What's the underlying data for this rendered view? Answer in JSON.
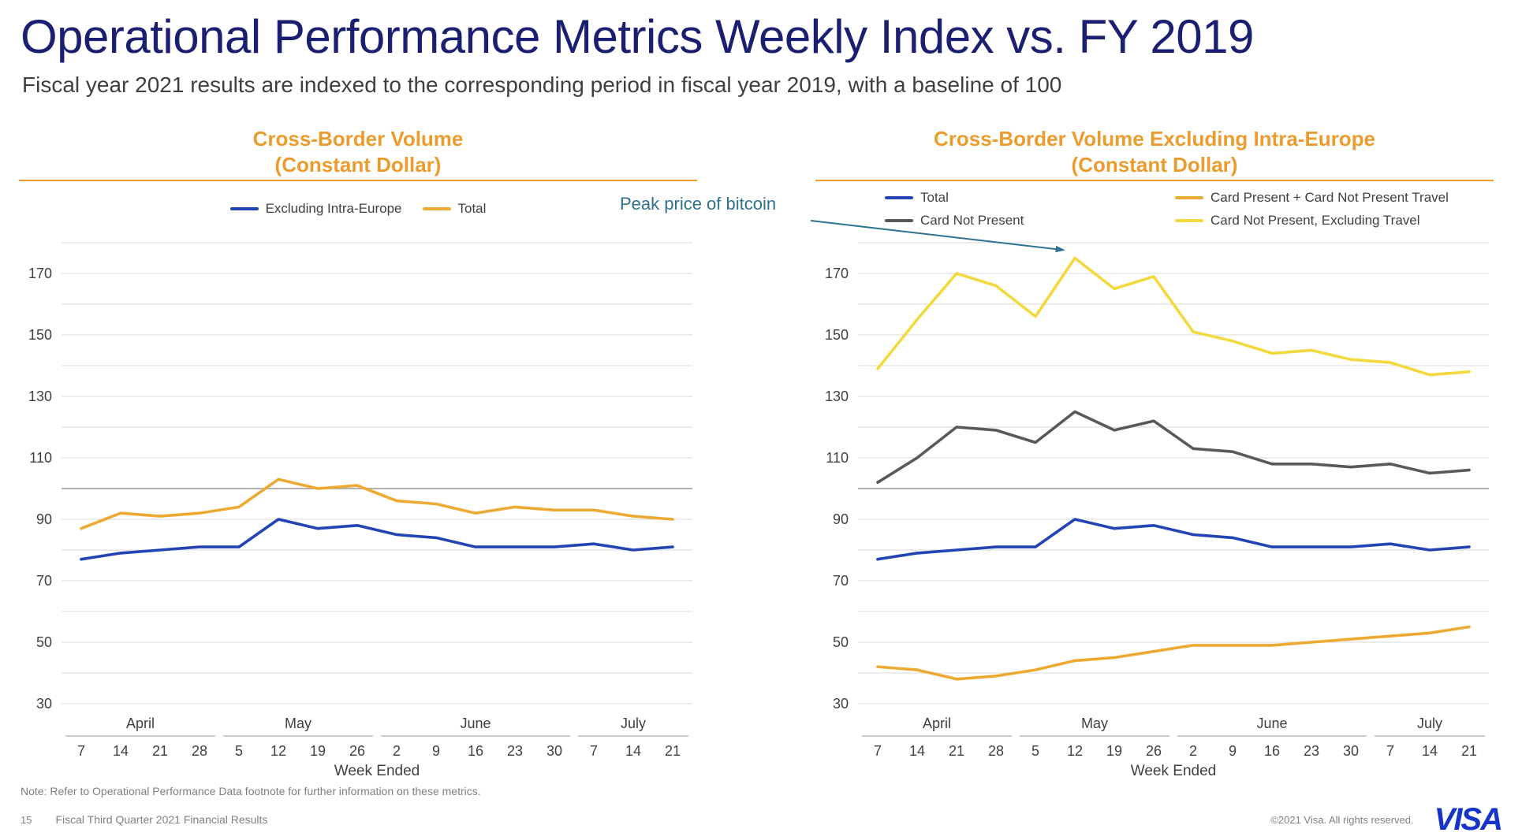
{
  "slide": {
    "title": "Operational Performance Metrics Weekly Index vs. FY 2019",
    "subtitle": "Fiscal year 2021 results are indexed to the corresponding period in fiscal year 2019, with a baseline of 100",
    "note": "Note: Refer to Operational Performance Data footnote for further information on these metrics.",
    "page_number": "15",
    "footer_left": "Fiscal Third Quarter 2021 Financial Results",
    "footer_right": "©2021 Visa. All rights reserved.",
    "logo_text": "VISA"
  },
  "colors": {
    "title_navy": "#1a1f71",
    "chart_title_orange": "#ec9b2d",
    "series_blue": "#2244b5",
    "series_orange": "#edaa32",
    "series_gray": "#595959",
    "series_yellow": "#f2d93d",
    "annotation_teal": "#2e7290",
    "gridline": "#d9d9d9",
    "baseline": "#a6a6a6",
    "axis_text": "#404040",
    "month_rule": "#b0b0b0",
    "visa_blue": "#1434cb"
  },
  "chart_data": [
    {
      "type": "line",
      "title": "Cross-Border Volume",
      "title_line2": "(Constant Dollar)",
      "xlabel": "Week Ended",
      "ylim": [
        30,
        180
      ],
      "yticks": [
        30,
        50,
        70,
        90,
        110,
        130,
        150,
        170
      ],
      "grid_step": 10,
      "baseline": 100,
      "grid": true,
      "legend_position": "top-center",
      "x": [
        "7",
        "14",
        "21",
        "28",
        "5",
        "12",
        "19",
        "26",
        "2",
        "9",
        "16",
        "23",
        "30",
        "7",
        "14",
        "21"
      ],
      "month_groups": [
        {
          "label": "April",
          "start": 0,
          "end": 3
        },
        {
          "label": "May",
          "start": 4,
          "end": 7
        },
        {
          "label": "June",
          "start": 8,
          "end": 12
        },
        {
          "label": "July",
          "start": 13,
          "end": 15
        }
      ],
      "series": [
        {
          "name": "Excluding Intra-Europe",
          "color": "#2244b5",
          "values": [
            77,
            79,
            80,
            81,
            81,
            90,
            87,
            88,
            85,
            84,
            81,
            81,
            81,
            82,
            80,
            81
          ]
        },
        {
          "name": "Total",
          "color": "#edaa32",
          "values": [
            87,
            92,
            91,
            92,
            94,
            103,
            100,
            101,
            96,
            95,
            92,
            94,
            93,
            93,
            91,
            90
          ]
        }
      ]
    },
    {
      "type": "line",
      "title": "Cross-Border Volume Excluding Intra-Europe",
      "title_line2": "(Constant Dollar)",
      "xlabel": "Week Ended",
      "ylim": [
        30,
        180
      ],
      "yticks": [
        30,
        50,
        70,
        90,
        110,
        130,
        150,
        170
      ],
      "grid_step": 10,
      "baseline": 100,
      "grid": true,
      "legend_position": "top-two-columns",
      "legend_order": [
        0,
        2,
        1,
        3
      ],
      "annotation": {
        "text": "Peak price of bitcoin",
        "series": "Card Not Present, Excluding Travel",
        "index": 5
      },
      "x": [
        "7",
        "14",
        "21",
        "28",
        "5",
        "12",
        "19",
        "26",
        "2",
        "9",
        "16",
        "23",
        "30",
        "7",
        "14",
        "21"
      ],
      "month_groups": [
        {
          "label": "April",
          "start": 0,
          "end": 3
        },
        {
          "label": "May",
          "start": 4,
          "end": 7
        },
        {
          "label": "June",
          "start": 8,
          "end": 12
        },
        {
          "label": "July",
          "start": 13,
          "end": 15
        }
      ],
      "series": [
        {
          "name": "Total",
          "color": "#2244b5",
          "values": [
            77,
            79,
            80,
            81,
            81,
            90,
            87,
            88,
            85,
            84,
            81,
            81,
            81,
            82,
            80,
            81
          ]
        },
        {
          "name": "Card Not Present",
          "color": "#595959",
          "values": [
            102,
            110,
            120,
            119,
            115,
            125,
            119,
            122,
            113,
            112,
            108,
            108,
            107,
            108,
            105,
            106
          ]
        },
        {
          "name": "Card Present + Card Not Present Travel",
          "color": "#edaa32",
          "values": [
            42,
            41,
            38,
            39,
            41,
            44,
            45,
            47,
            49,
            49,
            49,
            50,
            51,
            52,
            53,
            55
          ]
        },
        {
          "name": "Card Not Present, Excluding Travel",
          "color": "#f2d93d",
          "values": [
            139,
            155,
            170,
            166,
            156,
            175,
            165,
            169,
            151,
            148,
            144,
            145,
            142,
            141,
            137,
            138
          ]
        }
      ]
    }
  ]
}
